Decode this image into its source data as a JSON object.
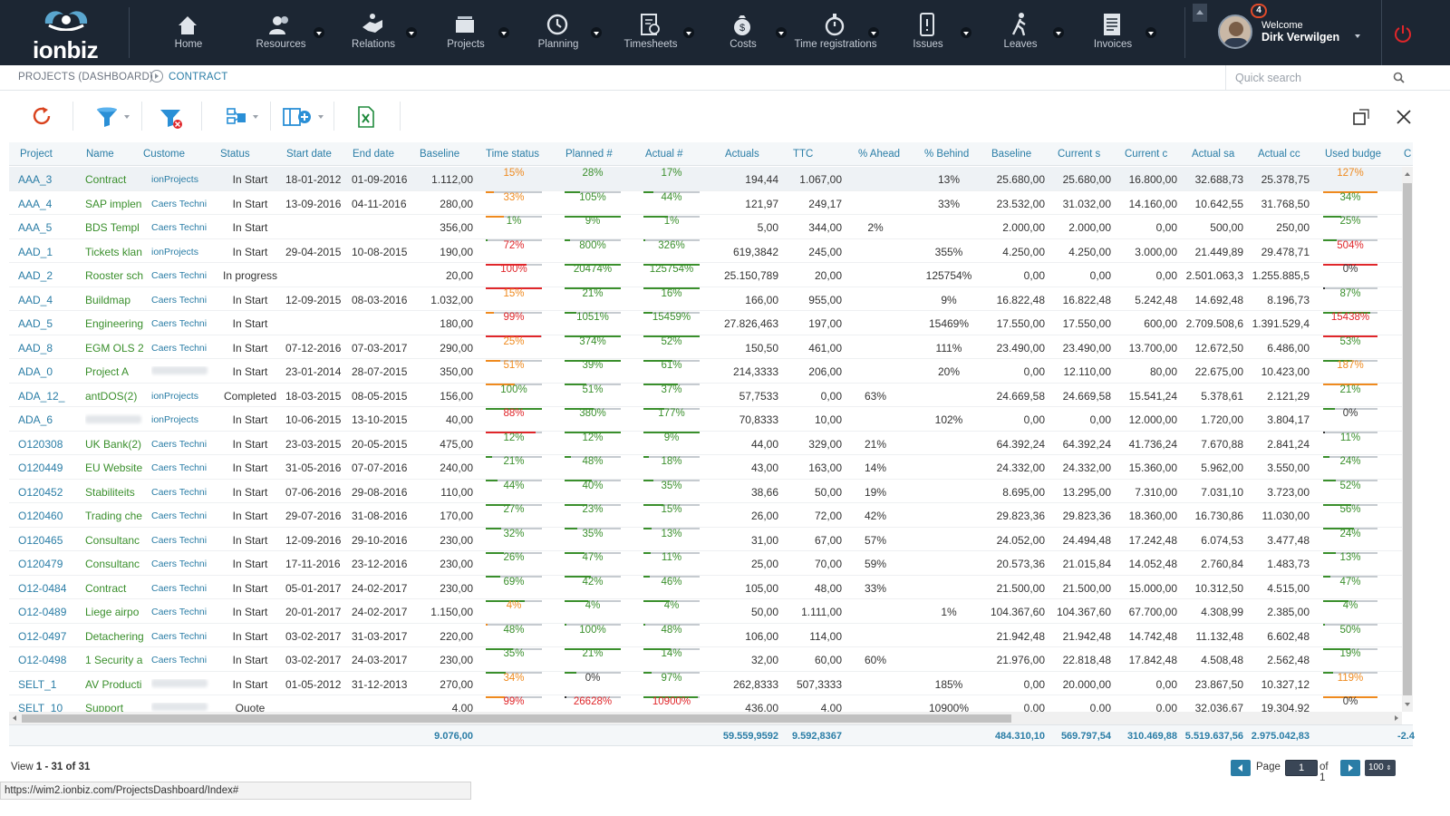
{
  "app": {
    "name": "ionbiz"
  },
  "nav": {
    "items": [
      {
        "label": "Home",
        "icon": "home-icon",
        "caret": false
      },
      {
        "label": "Resources",
        "icon": "people-icon",
        "caret": true
      },
      {
        "label": "Relations",
        "icon": "handshake-icon",
        "caret": true
      },
      {
        "label": "Projects",
        "icon": "folders-icon",
        "caret": true,
        "active": true
      },
      {
        "label": "Planning",
        "icon": "clock-arrow-icon",
        "caret": true
      },
      {
        "label": "Timesheets",
        "icon": "timesheet-icon",
        "caret": true
      },
      {
        "label": "Costs",
        "icon": "money-bag-icon",
        "caret": true
      },
      {
        "label": "Time registrations",
        "icon": "stopwatch-icon",
        "caret": true
      },
      {
        "label": "Issues",
        "icon": "issue-icon",
        "caret": true
      },
      {
        "label": "Leaves",
        "icon": "walking-icon",
        "caret": true
      },
      {
        "label": "Invoices",
        "icon": "invoice-icon",
        "caret": true
      }
    ],
    "notifications": "4",
    "welcome": "Welcome",
    "user_name": "Dirk Verwilgen"
  },
  "breadcrumb": {
    "parent": "PROJECTS (DASHBOARD)",
    "current": "CONTRACT"
  },
  "search": {
    "placeholder": "Quick search"
  },
  "colors": {
    "accent": "#2a7da6",
    "green": "#3a8f2c",
    "orange": "#ef8a1e",
    "red": "#e0262a",
    "nav_bg": "#1c2633"
  },
  "grid": {
    "headers": [
      "Project",
      "Name",
      "Custome",
      "Status",
      "Start date",
      "End date",
      "Baseline",
      "Time status",
      "Planned #",
      "Actual #",
      "Actuals",
      "TTC",
      "% Ahead",
      "% Behind",
      "Baseline",
      "Current s",
      "Current c",
      "Actual sa",
      "Actual cc",
      "Used budge",
      "C"
    ],
    "rows": [
      {
        "project": "AAA_3",
        "name": "Contract",
        "customer": "ionProjects",
        "status": "In Start",
        "start": "18-01-2012",
        "end": "01-09-2016",
        "baseline": "1.112,00",
        "time_status": "15%",
        "ts_c": "orange",
        "planned": "28%",
        "pl_c": "green",
        "actual_pct": "17%",
        "ap_c": "green",
        "actuals": "194,44",
        "ttc": "1.067,00",
        "ahead": "",
        "behind": "13%",
        "baseline2": "25.680,00",
        "current_s": "25.680,00",
        "current_c": "16.800,00",
        "actual_sa": "32.688,73",
        "actual_cc": "25.378,75",
        "used": "127%",
        "ub_c": "orange",
        "selected": true
      },
      {
        "project": "AAA_4",
        "name": "SAP implen",
        "customer": "Caers Techni",
        "status": "In Start",
        "start": "13-09-2016",
        "end": "04-11-2016",
        "baseline": "280,00",
        "time_status": "33%",
        "ts_c": "orange",
        "planned": "105%",
        "pl_c": "green",
        "actual_pct": "44%",
        "ap_c": "green",
        "actuals": "121,97",
        "ttc": "249,17",
        "ahead": "",
        "behind": "33%",
        "baseline2": "23.532,00",
        "current_s": "31.032,00",
        "current_c": "14.160,00",
        "actual_sa": "10.642,55",
        "actual_cc": "31.768,50",
        "used": "34%",
        "ub_c": "green"
      },
      {
        "project": "AAA_5",
        "name": "BDS Templ",
        "customer": "Caers Techni",
        "status": "In Start",
        "start": "",
        "end": "",
        "baseline": "356,00",
        "time_status": "1%",
        "ts_c": "green",
        "planned": "9%",
        "pl_c": "green",
        "actual_pct": "1%",
        "ap_c": "green",
        "actuals": "5,00",
        "ttc": "344,00",
        "ahead": "2%",
        "behind": "",
        "baseline2": "2.000,00",
        "current_s": "2.000,00",
        "current_c": "0,00",
        "actual_sa": "500,00",
        "actual_cc": "250,00",
        "used": "25%",
        "ub_c": "green"
      },
      {
        "project": "AAD_1",
        "name": "Tickets klan",
        "customer": "ionProjects",
        "status": "In Start",
        "start": "29-04-2015",
        "end": "10-08-2015",
        "baseline": "190,00",
        "time_status": "72%",
        "ts_c": "red",
        "planned": "800%",
        "pl_c": "green",
        "actual_pct": "326%",
        "ap_c": "green",
        "actuals": "619,3842",
        "ttc": "245,00",
        "ahead": "",
        "behind": "355%",
        "baseline2": "4.250,00",
        "current_s": "4.250,00",
        "current_c": "3.000,00",
        "actual_sa": "21.449,89",
        "actual_cc": "29.478,71",
        "used": "504%",
        "ub_c": "red"
      },
      {
        "project": "AAD_2",
        "name": "Rooster sch",
        "customer": "Caers Techni",
        "status": "In progress",
        "start": "",
        "end": "",
        "baseline": "20,00",
        "time_status": "100%",
        "ts_c": "red",
        "planned": "20474%",
        "pl_c": "green",
        "actual_pct": "125754%",
        "ap_c": "green",
        "actuals": "25.150,789",
        "ttc": "20,00",
        "ahead": "",
        "behind": "125754%",
        "baseline2": "0,00",
        "current_s": "0,00",
        "current_c": "0,00",
        "actual_sa": "2.501.063,3",
        "actual_cc": "1.255.885,5",
        "used": "0%",
        "ub_c": "gray"
      },
      {
        "project": "AAD_4",
        "name": "Buildmap",
        "customer": "Caers Techni",
        "status": "In Start",
        "start": "12-09-2015",
        "end": "08-03-2016",
        "baseline": "1.032,00",
        "time_status": "15%",
        "ts_c": "orange",
        "planned": "21%",
        "pl_c": "green",
        "actual_pct": "16%",
        "ap_c": "green",
        "actuals": "166,00",
        "ttc": "955,00",
        "ahead": "",
        "behind": "9%",
        "baseline2": "16.822,48",
        "current_s": "16.822,48",
        "current_c": "5.242,48",
        "actual_sa": "14.692,48",
        "actual_cc": "8.196,73",
        "used": "87%",
        "ub_c": "green"
      },
      {
        "project": "AAD_5",
        "name": "Engineering",
        "customer": "Caers Techni",
        "status": "In Start",
        "start": "",
        "end": "",
        "baseline": "180,00",
        "time_status": "99%",
        "ts_c": "red",
        "planned": "1051%",
        "pl_c": "green",
        "actual_pct": "15459%",
        "ap_c": "green",
        "actuals": "27.826,463",
        "ttc": "197,00",
        "ahead": "",
        "behind": "15469%",
        "baseline2": "17.550,00",
        "current_s": "17.550,00",
        "current_c": "600,00",
        "actual_sa": "2.709.508,6",
        "actual_cc": "1.391.529,4",
        "used": "15438%",
        "ub_c": "red"
      },
      {
        "project": "AAD_8",
        "name": "EGM OLS 2",
        "customer": "Caers Techni",
        "status": "In Start",
        "start": "07-12-2016",
        "end": "07-03-2017",
        "baseline": "290,00",
        "time_status": "25%",
        "ts_c": "orange",
        "planned": "374%",
        "pl_c": "green",
        "actual_pct": "52%",
        "ap_c": "green",
        "actuals": "150,50",
        "ttc": "461,00",
        "ahead": "",
        "behind": "111%",
        "baseline2": "23.490,00",
        "current_s": "23.490,00",
        "current_c": "13.700,00",
        "actual_sa": "12.672,50",
        "actual_cc": "6.486,00",
        "used": "53%",
        "ub_c": "green"
      },
      {
        "project": "ADA_0",
        "name": "Project A",
        "customer": "",
        "blur_customer": true,
        "status": "In Start",
        "start": "23-01-2014",
        "end": "28-07-2015",
        "baseline": "350,00",
        "time_status": "51%",
        "ts_c": "orange",
        "planned": "39%",
        "pl_c": "green",
        "actual_pct": "61%",
        "ap_c": "green",
        "actuals": "214,3333",
        "ttc": "206,00",
        "ahead": "",
        "behind": "20%",
        "baseline2": "0,00",
        "current_s": "12.110,00",
        "current_c": "80,00",
        "actual_sa": "22.675,00",
        "actual_cc": "10.423,00",
        "used": "187%",
        "ub_c": "orange"
      },
      {
        "project": "ADA_12_",
        "name": "antDOS(2)",
        "customer": "ionProjects",
        "status": "Completed",
        "start": "18-03-2015",
        "end": "08-05-2015",
        "baseline": "156,00",
        "time_status": "100%",
        "ts_c": "green",
        "planned": "51%",
        "pl_c": "green",
        "actual_pct": "37%",
        "ap_c": "green",
        "actuals": "57,7533",
        "ttc": "0,00",
        "ahead": "63%",
        "behind": "",
        "baseline2": "24.669,58",
        "current_s": "24.669,58",
        "current_c": "15.541,24",
        "actual_sa": "5.378,61",
        "actual_cc": "2.121,29",
        "used": "21%",
        "ub_c": "green"
      },
      {
        "project": "ADA_6",
        "name": "",
        "blur_name": true,
        "customer": "ionProjects",
        "status": "In Start",
        "start": "10-06-2015",
        "end": "13-10-2015",
        "baseline": "40,00",
        "time_status": "88%",
        "ts_c": "red",
        "planned": "380%",
        "pl_c": "green",
        "actual_pct": "177%",
        "ap_c": "green",
        "actuals": "70,8333",
        "ttc": "10,00",
        "ahead": "",
        "behind": "102%",
        "baseline2": "0,00",
        "current_s": "0,00",
        "current_c": "12.000,00",
        "actual_sa": "1.720,00",
        "actual_cc": "3.804,17",
        "used": "0%",
        "ub_c": "gray"
      },
      {
        "project": "O120308",
        "name": "UK Bank(2)",
        "customer": "Caers Techni",
        "status": "In Start",
        "start": "23-03-2015",
        "end": "20-05-2015",
        "baseline": "475,00",
        "time_status": "12%",
        "ts_c": "green",
        "planned": "12%",
        "pl_c": "green",
        "actual_pct": "9%",
        "ap_c": "green",
        "actuals": "44,00",
        "ttc": "329,00",
        "ahead": "21%",
        "behind": "",
        "baseline2": "64.392,24",
        "current_s": "64.392,24",
        "current_c": "41.736,24",
        "actual_sa": "7.670,88",
        "actual_cc": "2.841,24",
        "used": "11%",
        "ub_c": "green"
      },
      {
        "project": "O120449",
        "name": "EU Website",
        "customer": "Caers Techni",
        "status": "In Start",
        "start": "31-05-2016",
        "end": "07-07-2016",
        "baseline": "240,00",
        "time_status": "21%",
        "ts_c": "green",
        "planned": "48%",
        "pl_c": "green",
        "actual_pct": "18%",
        "ap_c": "green",
        "actuals": "43,00",
        "ttc": "163,00",
        "ahead": "14%",
        "behind": "",
        "baseline2": "24.332,00",
        "current_s": "24.332,00",
        "current_c": "15.360,00",
        "actual_sa": "5.962,00",
        "actual_cc": "3.550,00",
        "used": "24%",
        "ub_c": "green"
      },
      {
        "project": "O120452",
        "name": "Stabiliteits",
        "customer": "Caers Techni",
        "status": "In Start",
        "start": "07-06-2016",
        "end": "29-08-2016",
        "baseline": "110,00",
        "time_status": "44%",
        "ts_c": "green",
        "planned": "40%",
        "pl_c": "green",
        "actual_pct": "35%",
        "ap_c": "green",
        "actuals": "38,66",
        "ttc": "50,00",
        "ahead": "19%",
        "behind": "",
        "baseline2": "8.695,00",
        "current_s": "13.295,00",
        "current_c": "7.310,00",
        "actual_sa": "7.031,10",
        "actual_cc": "3.723,00",
        "used": "52%",
        "ub_c": "green"
      },
      {
        "project": "O120460",
        "name": "Trading che",
        "customer": "Caers Techni",
        "status": "In Start",
        "start": "29-07-2016",
        "end": "31-08-2016",
        "baseline": "170,00",
        "time_status": "27%",
        "ts_c": "green",
        "planned": "23%",
        "pl_c": "green",
        "actual_pct": "15%",
        "ap_c": "green",
        "actuals": "26,00",
        "ttc": "72,00",
        "ahead": "42%",
        "behind": "",
        "baseline2": "29.823,36",
        "current_s": "29.823,36",
        "current_c": "18.360,00",
        "actual_sa": "16.730,86",
        "actual_cc": "11.030,00",
        "used": "56%",
        "ub_c": "green"
      },
      {
        "project": "O120465",
        "name": "Consultanc",
        "customer": "Caers Techni",
        "status": "In Start",
        "start": "12-09-2016",
        "end": "29-10-2016",
        "baseline": "230,00",
        "time_status": "32%",
        "ts_c": "green",
        "planned": "35%",
        "pl_c": "green",
        "actual_pct": "13%",
        "ap_c": "green",
        "actuals": "31,00",
        "ttc": "67,00",
        "ahead": "57%",
        "behind": "",
        "baseline2": "24.052,00",
        "current_s": "24.494,48",
        "current_c": "17.242,48",
        "actual_sa": "6.074,53",
        "actual_cc": "3.477,48",
        "used": "24%",
        "ub_c": "green"
      },
      {
        "project": "O120479",
        "name": "Consultanc",
        "customer": "Caers Techni",
        "status": "In Start",
        "start": "17-11-2016",
        "end": "23-12-2016",
        "baseline": "230,00",
        "time_status": "26%",
        "ts_c": "green",
        "planned": "47%",
        "pl_c": "green",
        "actual_pct": "11%",
        "ap_c": "green",
        "actuals": "25,00",
        "ttc": "70,00",
        "ahead": "59%",
        "behind": "",
        "baseline2": "20.573,36",
        "current_s": "21.015,84",
        "current_c": "14.052,48",
        "actual_sa": "2.760,84",
        "actual_cc": "1.483,73",
        "used": "13%",
        "ub_c": "green"
      },
      {
        "project": "O12-0484",
        "name": "Contract",
        "customer": "Caers Techni",
        "status": "In Start",
        "start": "05-01-2017",
        "end": "24-02-2017",
        "baseline": "230,00",
        "time_status": "69%",
        "ts_c": "green",
        "planned": "42%",
        "pl_c": "green",
        "actual_pct": "46%",
        "ap_c": "green",
        "actuals": "105,00",
        "ttc": "48,00",
        "ahead": "33%",
        "behind": "",
        "baseline2": "21.500,00",
        "current_s": "21.500,00",
        "current_c": "15.000,00",
        "actual_sa": "10.312,50",
        "actual_cc": "4.515,00",
        "used": "47%",
        "ub_c": "green"
      },
      {
        "project": "O12-0489",
        "name": "Liege airpo",
        "customer": "Caers Techni",
        "status": "In Start",
        "start": "20-01-2017",
        "end": "24-02-2017",
        "baseline": "1.150,00",
        "time_status": "4%",
        "ts_c": "orange",
        "planned": "4%",
        "pl_c": "green",
        "actual_pct": "4%",
        "ap_c": "green",
        "actuals": "50,00",
        "ttc": "1.111,00",
        "ahead": "",
        "behind": "1%",
        "baseline2": "104.367,60",
        "current_s": "104.367,60",
        "current_c": "67.700,00",
        "actual_sa": "4.308,99",
        "actual_cc": "2.385,00",
        "used": "4%",
        "ub_c": "green"
      },
      {
        "project": "O12-0497",
        "name": "Detachering",
        "customer": "Caers Techni",
        "status": "In Start",
        "start": "03-02-2017",
        "end": "31-03-2017",
        "baseline": "220,00",
        "time_status": "48%",
        "ts_c": "green",
        "planned": "100%",
        "pl_c": "green",
        "actual_pct": "48%",
        "ap_c": "green",
        "actuals": "106,00",
        "ttc": "114,00",
        "ahead": "",
        "behind": "",
        "baseline2": "21.942,48",
        "current_s": "21.942,48",
        "current_c": "14.742,48",
        "actual_sa": "11.132,48",
        "actual_cc": "6.602,48",
        "used": "50%",
        "ub_c": "green"
      },
      {
        "project": "O12-0498",
        "name": "1 Security a",
        "customer": "Caers Techni",
        "status": "In Start",
        "start": "03-02-2017",
        "end": "24-03-2017",
        "baseline": "230,00",
        "time_status": "35%",
        "ts_c": "green",
        "planned": "21%",
        "pl_c": "green",
        "actual_pct": "14%",
        "ap_c": "green",
        "actuals": "32,00",
        "ttc": "60,00",
        "ahead": "60%",
        "behind": "",
        "baseline2": "21.976,00",
        "current_s": "22.818,48",
        "current_c": "17.842,48",
        "actual_sa": "4.508,48",
        "actual_cc": "2.562,48",
        "used": "19%",
        "ub_c": "green"
      },
      {
        "project": "SELT_1",
        "name": "AV Producti",
        "customer": "",
        "blur_customer": true,
        "status": "In Start",
        "start": "01-05-2012",
        "end": "31-12-2013",
        "baseline": "270,00",
        "time_status": "34%",
        "ts_c": "orange",
        "planned": "0%",
        "pl_c": "gray",
        "actual_pct": "97%",
        "ap_c": "green",
        "actuals": "262,8333",
        "ttc": "507,3333",
        "ahead": "",
        "behind": "185%",
        "baseline2": "0,00",
        "current_s": "20.000,00",
        "current_c": "0,00",
        "actual_sa": "23.867,50",
        "actual_cc": "10.327,12",
        "used": "119%",
        "ub_c": "orange"
      },
      {
        "project": "SELT_10",
        "name": "Support",
        "customer": "",
        "blur_customer": true,
        "status": "Quote",
        "start": "",
        "end": "",
        "baseline": "4,00",
        "time_status": "99%",
        "ts_c": "red",
        "planned": "26628%",
        "pl_c": "red",
        "actual_pct": "10900%",
        "ap_c": "red",
        "actuals": "436,00",
        "ttc": "4,00",
        "ahead": "",
        "behind": "10900%",
        "baseline2": "0,00",
        "current_s": "0,00",
        "current_c": "0,00",
        "actual_sa": "32.036,67",
        "actual_cc": "19.304,92",
        "used": "0%",
        "ub_c": "gray"
      }
    ],
    "totals": {
      "baseline": "9.076,00",
      "actuals": "59.559,9592",
      "ttc": "9.592,8367",
      "baseline2": "484.310,10",
      "current_s": "569.797,54",
      "current_c": "310.469,88",
      "actual_sa": "5.519.637,56",
      "actual_cc": "2.975.042,83",
      "last": "-2.4"
    }
  },
  "footer": {
    "view_prefix": "View ",
    "view_range": "1 - 31 of 31",
    "page_label": "Page",
    "page_value": "1",
    "of_label": "of 1",
    "page_size": "100"
  },
  "status_url": "https://wim2.ionbiz.com/ProjectsDashboard/Index#"
}
